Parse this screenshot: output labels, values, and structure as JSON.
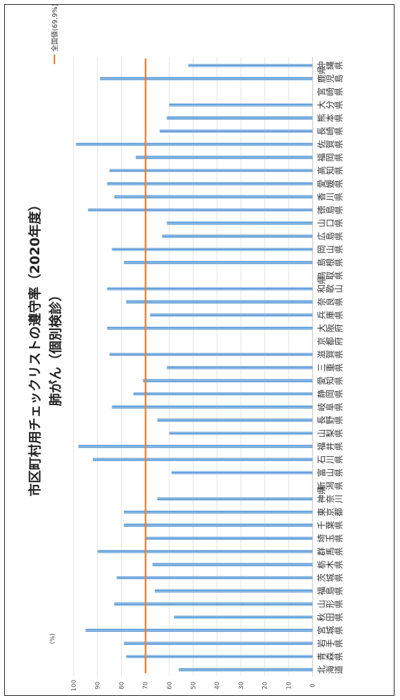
{
  "chart_data": {
    "type": "bar",
    "orientation": "vertical-rotated",
    "title_line1": "市区町村用チェックリストの遵守率（2020年度）",
    "title_line2": "肺がん（個別検診）",
    "ylabel": "(%)",
    "ylim": [
      0,
      100
    ],
    "yticks": [
      0,
      10,
      20,
      30,
      40,
      50,
      60,
      70,
      80,
      90,
      100
    ],
    "grid": true,
    "bar_color": "#5b9bd5",
    "reference_line": {
      "label": "全国値(69.9%)",
      "value": 69.9,
      "color": "#ed7d31"
    },
    "legend_position": "top-right",
    "categories": [
      "北海道",
      "青森県",
      "岩手県",
      "宮城県",
      "秋田県",
      "山形県",
      "福島県",
      "茨城県",
      "栃木県",
      "群馬県",
      "埼玉県",
      "千葉県",
      "東京都",
      "神奈川県",
      "新潟県",
      "富山県",
      "石川県",
      "福井県",
      "山梨県",
      "長野県",
      "岐阜県",
      "静岡県",
      "愛知県",
      "三重県",
      "滋賀県",
      "京都府",
      "大阪府",
      "兵庫県",
      "奈良県",
      "和歌山県",
      "鳥取県",
      "島根県",
      "岡山県",
      "広島県",
      "山口県",
      "徳島県",
      "香川県",
      "愛媛県",
      "高知県",
      "福岡県",
      "佐賀県",
      "長崎県",
      "熊本県",
      "大分県",
      "宮崎県",
      "鹿児島県",
      "沖縄県"
    ],
    "values": [
      56,
      78,
      79,
      95,
      58,
      83,
      66,
      82,
      67,
      90,
      70,
      79,
      79,
      65,
      0,
      59,
      92,
      98,
      60,
      65,
      84,
      75,
      71,
      61,
      85,
      0,
      86,
      68,
      78,
      86,
      0,
      79,
      84,
      63,
      61,
      94,
      83,
      86,
      85,
      74,
      99,
      64,
      61,
      60,
      0,
      89,
      52
    ]
  }
}
